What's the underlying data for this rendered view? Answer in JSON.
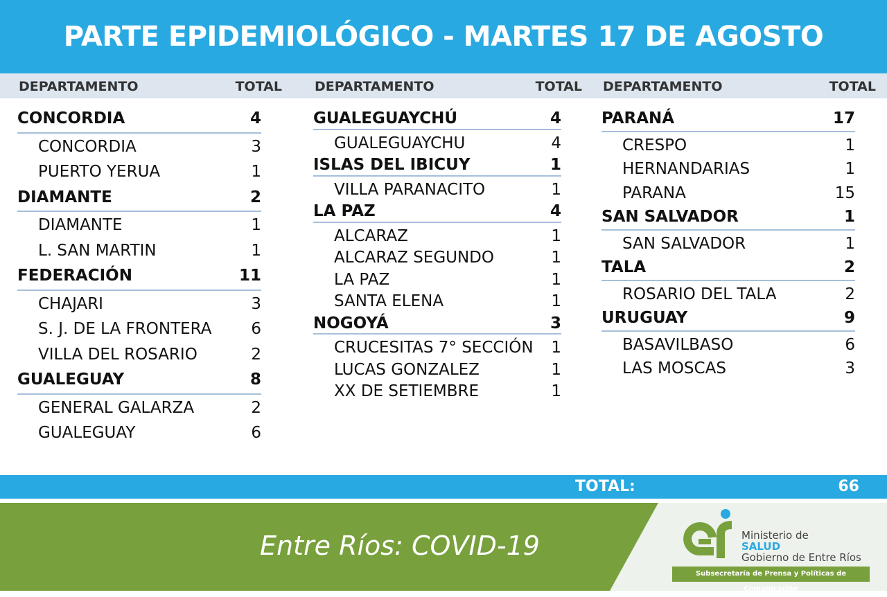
{
  "header": {
    "title": "PARTE EPIDEMIOLÓGICO - MARTES 17 DE AGOSTO"
  },
  "columns": [
    {
      "head": [
        "DEPARTAMENTO",
        "TOTAL"
      ],
      "groups": [
        {
          "name": "CONCORDIA",
          "total": 4,
          "rows": [
            [
              "CONCORDIA",
              3
            ],
            [
              "PUERTO YERUA",
              1
            ]
          ]
        },
        {
          "name": "DIAMANTE",
          "total": 2,
          "rows": [
            [
              "DIAMANTE",
              1
            ],
            [
              "L. SAN MARTIN",
              1
            ]
          ]
        },
        {
          "name": "FEDERACIÓN",
          "total": 11,
          "rows": [
            [
              "CHAJARI",
              3
            ],
            [
              "S. J. DE LA FRONTERA",
              6
            ],
            [
              "VILLA DEL ROSARIO",
              2
            ]
          ]
        },
        {
          "name": "GUALEGUAY",
          "total": 8,
          "rows": [
            [
              "GENERAL GALARZA",
              2
            ],
            [
              "GUALEGUAY",
              6
            ]
          ]
        }
      ]
    },
    {
      "head": [
        "DEPARTAMENTO",
        "TOTAL"
      ],
      "groups": [
        {
          "name": "GUALEGUAYCHÚ",
          "total": 4,
          "rows": [
            [
              "GUALEGUAYCHU",
              4
            ]
          ]
        },
        {
          "name": "ISLAS DEL IBICUY",
          "total": 1,
          "rows": [
            [
              "VILLA PARANACITO",
              1
            ]
          ]
        },
        {
          "name": "LA PAZ",
          "total": 4,
          "rows": [
            [
              "ALCARAZ",
              1
            ],
            [
              "ALCARAZ SEGUNDO",
              1
            ],
            [
              "LA PAZ",
              1
            ],
            [
              "SANTA ELENA",
              1
            ]
          ]
        },
        {
          "name": "NOGOYÁ",
          "total": 3,
          "rows": [
            [
              "CRUCESITAS 7° SECCIÓN",
              1
            ],
            [
              "LUCAS GONZALEZ",
              1
            ],
            [
              "XX DE SETIEMBRE",
              1
            ]
          ]
        }
      ]
    },
    {
      "head": [
        "DEPARTAMENTO",
        "TOTAL"
      ],
      "groups": [
        {
          "name": "PARANÁ",
          "total": 17,
          "rows": [
            [
              "CRESPO",
              1
            ],
            [
              "HERNANDARIAS",
              1
            ],
            [
              "PARANA",
              15
            ]
          ]
        },
        {
          "name": "SAN SALVADOR",
          "total": 1,
          "rows": [
            [
              "SAN SALVADOR",
              1
            ]
          ]
        },
        {
          "name": "TALA",
          "total": 2,
          "rows": [
            [
              "ROSARIO DEL TALA",
              2
            ]
          ]
        },
        {
          "name": "URUGUAY",
          "total": 9,
          "rows": [
            [
              "BASAVILBASO",
              6
            ],
            [
              "LAS MOSCAS",
              3
            ]
          ]
        }
      ]
    }
  ],
  "total": {
    "label": "TOTAL:",
    "value": 66
  },
  "footer": {
    "slogan": "Entre Ríos: COVID-19",
    "logo": {
      "line1": "Ministerio de",
      "line2": "SALUD",
      "line3": "Gobierno de Entre Ríos"
    },
    "banner": "Subsecretaría de Prensa y Políticas de Comunicación"
  }
}
